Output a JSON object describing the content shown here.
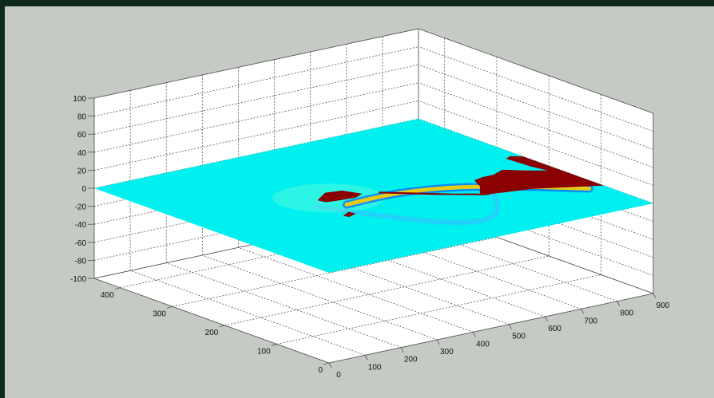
{
  "chart_data": {
    "type": "surface3d",
    "title": "",
    "xlabel": "",
    "ylabel": "",
    "zlabel": "",
    "xlim": [
      0,
      900
    ],
    "ylim": [
      0,
      450
    ],
    "zlim": [
      -100,
      100
    ],
    "x_ticks": [
      "0",
      "100",
      "200",
      "300",
      "400",
      "500",
      "600",
      "700",
      "800",
      "900"
    ],
    "y_ticks": [
      "0",
      "100",
      "200",
      "300",
      "400"
    ],
    "z_ticks": [
      "-100",
      "-80",
      "-60",
      "-40",
      "-20",
      "0",
      "20",
      "40",
      "60",
      "80",
      "100"
    ],
    "grid": true,
    "colormap": "jet",
    "surface": {
      "base_z": 0,
      "base_color": "#00f0f0",
      "high_color": "#ffd200",
      "low_color": "#0040ff",
      "mask_color": "#8b0000"
    }
  }
}
